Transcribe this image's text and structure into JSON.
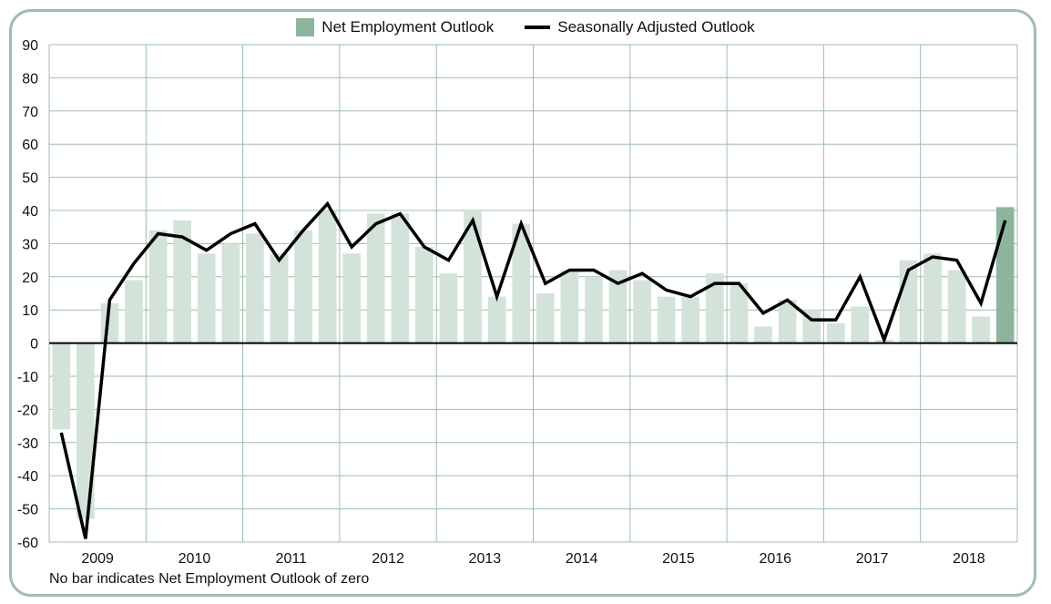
{
  "legend": {
    "bar_label": "Net Employment Outlook",
    "line_label": "Seasonally Adjusted Outlook"
  },
  "footnote": "No bar indicates Net Employment Outlook of zero",
  "colors": {
    "bar": "#d3e3d9",
    "bar_current": "#8db59d",
    "line": "#000000",
    "grid": "#9dbfa9"
  },
  "chart_data": {
    "type": "bar",
    "ylim": [
      -60,
      90
    ],
    "yticks": [
      90,
      80,
      70,
      60,
      50,
      40,
      30,
      20,
      10,
      0,
      -10,
      -20,
      -30,
      -40,
      -50,
      -60
    ],
    "years": [
      "2009",
      "2010",
      "2011",
      "2012",
      "2013",
      "2014",
      "2015",
      "2016",
      "2017",
      "2018"
    ],
    "quarters": [
      "2009 Q1",
      "2009 Q2",
      "2009 Q3",
      "2009 Q4",
      "2010 Q1",
      "2010 Q2",
      "2010 Q3",
      "2010 Q4",
      "2011 Q1",
      "2011 Q2",
      "2011 Q3",
      "2011 Q4",
      "2012 Q1",
      "2012 Q2",
      "2012 Q3",
      "2012 Q4",
      "2013 Q1",
      "2013 Q2",
      "2013 Q3",
      "2013 Q4",
      "2014 Q1",
      "2014 Q2",
      "2014 Q3",
      "2014 Q4",
      "2015 Q1",
      "2015 Q2",
      "2015 Q3",
      "2015 Q4",
      "2016 Q1",
      "2016 Q2",
      "2016 Q3",
      "2016 Q4",
      "2017 Q1",
      "2017 Q2",
      "2017 Q3",
      "2017 Q4",
      "2018 Q1",
      "2018 Q2",
      "2018 Q3",
      "2018 Q4"
    ],
    "series": [
      {
        "name": "Net Employment Outlook",
        "type": "bar",
        "values": [
          -26,
          -53,
          12,
          19,
          34,
          37,
          27,
          30,
          33,
          27,
          34,
          40,
          27,
          39,
          39,
          29,
          21,
          40,
          14,
          36,
          15,
          22,
          20,
          22,
          19,
          14,
          14,
          21,
          18,
          5,
          13,
          10,
          6,
          11,
          1,
          25,
          27,
          22,
          8,
          41
        ]
      },
      {
        "name": "Seasonally Adjusted Outlook",
        "type": "line",
        "values": [
          -27,
          -59,
          13,
          24,
          33,
          32,
          28,
          33,
          36,
          25,
          34,
          42,
          29,
          36,
          39,
          29,
          25,
          37,
          14,
          36,
          18,
          22,
          22,
          18,
          21,
          16,
          14,
          18,
          18,
          9,
          13,
          7,
          7,
          20,
          1,
          22,
          26,
          25,
          12,
          37
        ]
      }
    ]
  }
}
